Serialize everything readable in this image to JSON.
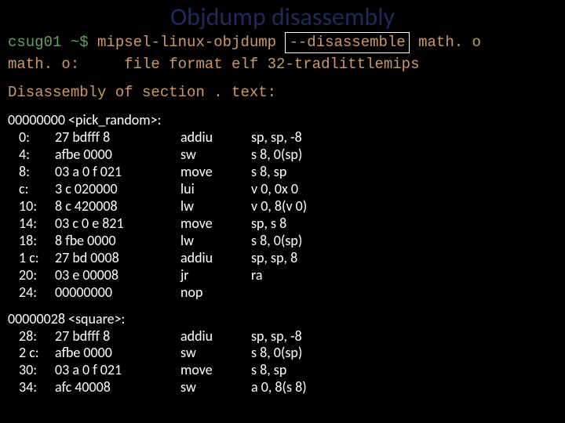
{
  "title": "Objdump disassembly",
  "colors": {
    "background": "#000000",
    "title_color": "#1f2a5a",
    "prompt_color": "#61a161",
    "command_color": "#cc9966",
    "body_text": "#ffffff",
    "box_border": "#ffffff"
  },
  "typography": {
    "title_fontsize": 32,
    "mono_fontsize": 19,
    "body_fontsize": 18
  },
  "command": {
    "prompt": "csug01 ~$",
    "exe": "mipsel-linux-objdump",
    "flag": "--disassemble",
    "target": "math. o"
  },
  "header": {
    "line1": "math. o:     file format elf 32-tradlittlemips",
    "line2": "Disassembly of section . text:"
  },
  "blocks": [
    {
      "symbol": "00000000 <pick_random>:",
      "rows": [
        {
          "addr": "0:",
          "hex": "27 bdfff 8",
          "mnem": "addiu",
          "ops": "sp, sp, -8"
        },
        {
          "addr": "4:",
          "hex": "afbe 0000",
          "mnem": "sw",
          "ops": "s 8, 0(sp)"
        },
        {
          "addr": "8:",
          "hex": "03 a 0 f 021",
          "mnem": "move",
          "ops": "s 8, sp"
        },
        {
          "addr": "c:",
          "hex": "3 c 020000",
          "mnem": "lui",
          "ops": "v 0, 0x 0"
        },
        {
          "addr": "10:",
          "hex": "8 c 420008",
          "mnem": "lw",
          "ops": "v 0, 8(v 0)"
        },
        {
          "addr": "14:",
          "hex": "03 c 0 e 821",
          "mnem": "move",
          "ops": "sp, s 8"
        },
        {
          "addr": "18:",
          "hex": "8 fbe 0000",
          "mnem": "lw",
          "ops": "s 8, 0(sp)"
        },
        {
          "addr": "1 c:",
          "hex": "27 bd 0008",
          "mnem": "addiu",
          "ops": "sp, sp, 8"
        },
        {
          "addr": "20:",
          "hex": "03 e 00008",
          "mnem": "jr",
          "ops": "ra"
        },
        {
          "addr": "24:",
          "hex": "00000000",
          "mnem": "nop",
          "ops": ""
        }
      ]
    },
    {
      "symbol": "00000028 <square>:",
      "rows": [
        {
          "addr": "28:",
          "hex": "27 bdfff 8",
          "mnem": "addiu",
          "ops": "sp, sp, -8"
        },
        {
          "addr": "2 c:",
          "hex": "afbe 0000",
          "mnem": "sw",
          "ops": "s 8, 0(sp)"
        },
        {
          "addr": "30:",
          "hex": "03 a 0 f 021",
          "mnem": "move",
          "ops": "s 8, sp"
        },
        {
          "addr": "34:",
          "hex": "afc 40008",
          "mnem": "sw",
          "ops": "a 0, 8(s 8)"
        }
      ]
    }
  ]
}
